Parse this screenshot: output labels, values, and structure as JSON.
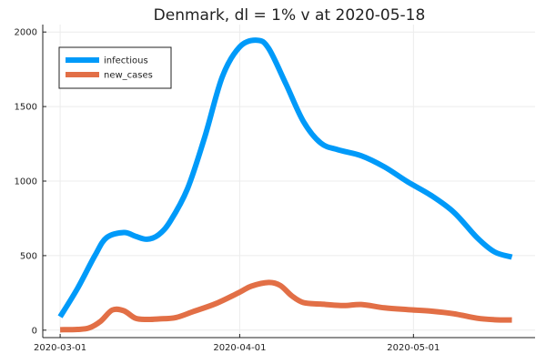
{
  "chart_data": {
    "type": "line",
    "title": "Denmark,  dl = 1% v at 2020-05-18",
    "xlabel": "",
    "ylabel": "",
    "x_start": "2020-03-01",
    "x_end": "2020-05-18",
    "xlim": [
      "2020-02-27",
      "2020-05-22"
    ],
    "ylim": [
      -50,
      2050
    ],
    "x_ticks": [
      "2020-03-01",
      "2020-04-01",
      "2020-05-01"
    ],
    "y_ticks": [
      0,
      500,
      1000,
      1500,
      2000
    ],
    "grid": true,
    "legend_position": "top-left",
    "series": [
      {
        "name": "infectious",
        "color": "#009af9",
        "points": [
          [
            "2020-03-01",
            90
          ],
          [
            "2020-03-04",
            280
          ],
          [
            "2020-03-07",
            500
          ],
          [
            "2020-03-09",
            620
          ],
          [
            "2020-03-12",
            655
          ],
          [
            "2020-03-14",
            630
          ],
          [
            "2020-03-16",
            610
          ],
          [
            "2020-03-18",
            640
          ],
          [
            "2020-03-20",
            730
          ],
          [
            "2020-03-23",
            950
          ],
          [
            "2020-03-26",
            1300
          ],
          [
            "2020-03-29",
            1700
          ],
          [
            "2020-04-01",
            1900
          ],
          [
            "2020-04-04",
            1945
          ],
          [
            "2020-04-06",
            1890
          ],
          [
            "2020-04-09",
            1650
          ],
          [
            "2020-04-12",
            1400
          ],
          [
            "2020-04-15",
            1255
          ],
          [
            "2020-04-18",
            1210
          ],
          [
            "2020-04-22",
            1170
          ],
          [
            "2020-04-26",
            1095
          ],
          [
            "2020-04-30",
            995
          ],
          [
            "2020-05-04",
            905
          ],
          [
            "2020-05-08",
            790
          ],
          [
            "2020-05-12",
            620
          ],
          [
            "2020-05-15",
            525
          ],
          [
            "2020-05-18",
            490
          ]
        ]
      },
      {
        "name": "new_cases",
        "color": "#e26f46",
        "points": [
          [
            "2020-03-01",
            3
          ],
          [
            "2020-03-04",
            5
          ],
          [
            "2020-03-06",
            15
          ],
          [
            "2020-03-08",
            60
          ],
          [
            "2020-03-10",
            135
          ],
          [
            "2020-03-12",
            130
          ],
          [
            "2020-03-14",
            80
          ],
          [
            "2020-03-16",
            72
          ],
          [
            "2020-03-18",
            75
          ],
          [
            "2020-03-21",
            85
          ],
          [
            "2020-03-24",
            125
          ],
          [
            "2020-03-28",
            180
          ],
          [
            "2020-04-01",
            255
          ],
          [
            "2020-04-03",
            295
          ],
          [
            "2020-04-06",
            320
          ],
          [
            "2020-04-08",
            300
          ],
          [
            "2020-04-10",
            230
          ],
          [
            "2020-04-12",
            185
          ],
          [
            "2020-04-15",
            175
          ],
          [
            "2020-04-19",
            165
          ],
          [
            "2020-04-22",
            172
          ],
          [
            "2020-04-26",
            150
          ],
          [
            "2020-04-30",
            138
          ],
          [
            "2020-05-04",
            128
          ],
          [
            "2020-05-08",
            110
          ],
          [
            "2020-05-12",
            80
          ],
          [
            "2020-05-15",
            70
          ],
          [
            "2020-05-18",
            68
          ]
        ]
      }
    ]
  }
}
